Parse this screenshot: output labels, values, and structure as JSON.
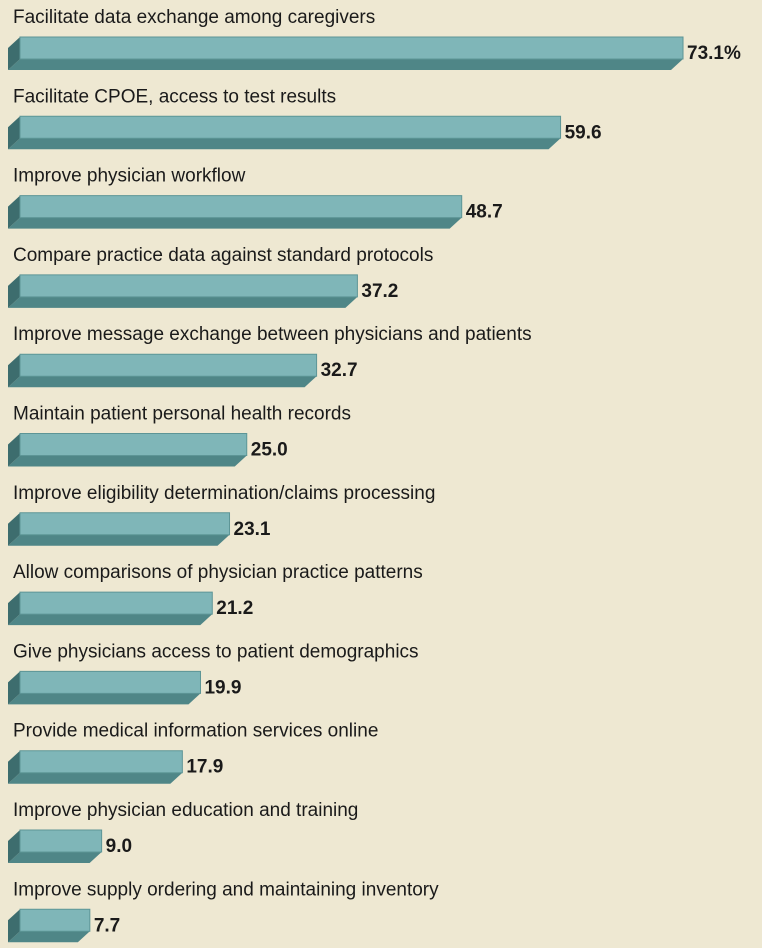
{
  "chart_data": {
    "type": "bar",
    "orientation": "horizontal",
    "categories": [
      "Facilitate data exchange among caregivers",
      "Facilitate CPOE, access to test results",
      "Improve physician workflow",
      "Compare practice data against standard protocols",
      "Improve message exchange between physicians and patients",
      "Maintain patient personal health records",
      "Improve eligibility determination/claims processing",
      "Allow comparisons of physician practice patterns",
      "Give physicians access to patient demographics",
      "Provide medical information services online",
      "Improve physician education and training",
      "Improve supply ordering and maintaining inventory"
    ],
    "values": [
      73.1,
      59.6,
      48.7,
      37.2,
      32.7,
      25.0,
      23.1,
      21.2,
      19.9,
      17.9,
      9.0,
      7.7
    ],
    "value_labels": [
      "73.1%",
      "59.6",
      "48.7",
      "37.2",
      "32.7",
      "25.0",
      "23.1",
      "21.2",
      "19.9",
      "17.9",
      "9.0",
      "7.7"
    ],
    "color": "#7fb6b8"
  }
}
